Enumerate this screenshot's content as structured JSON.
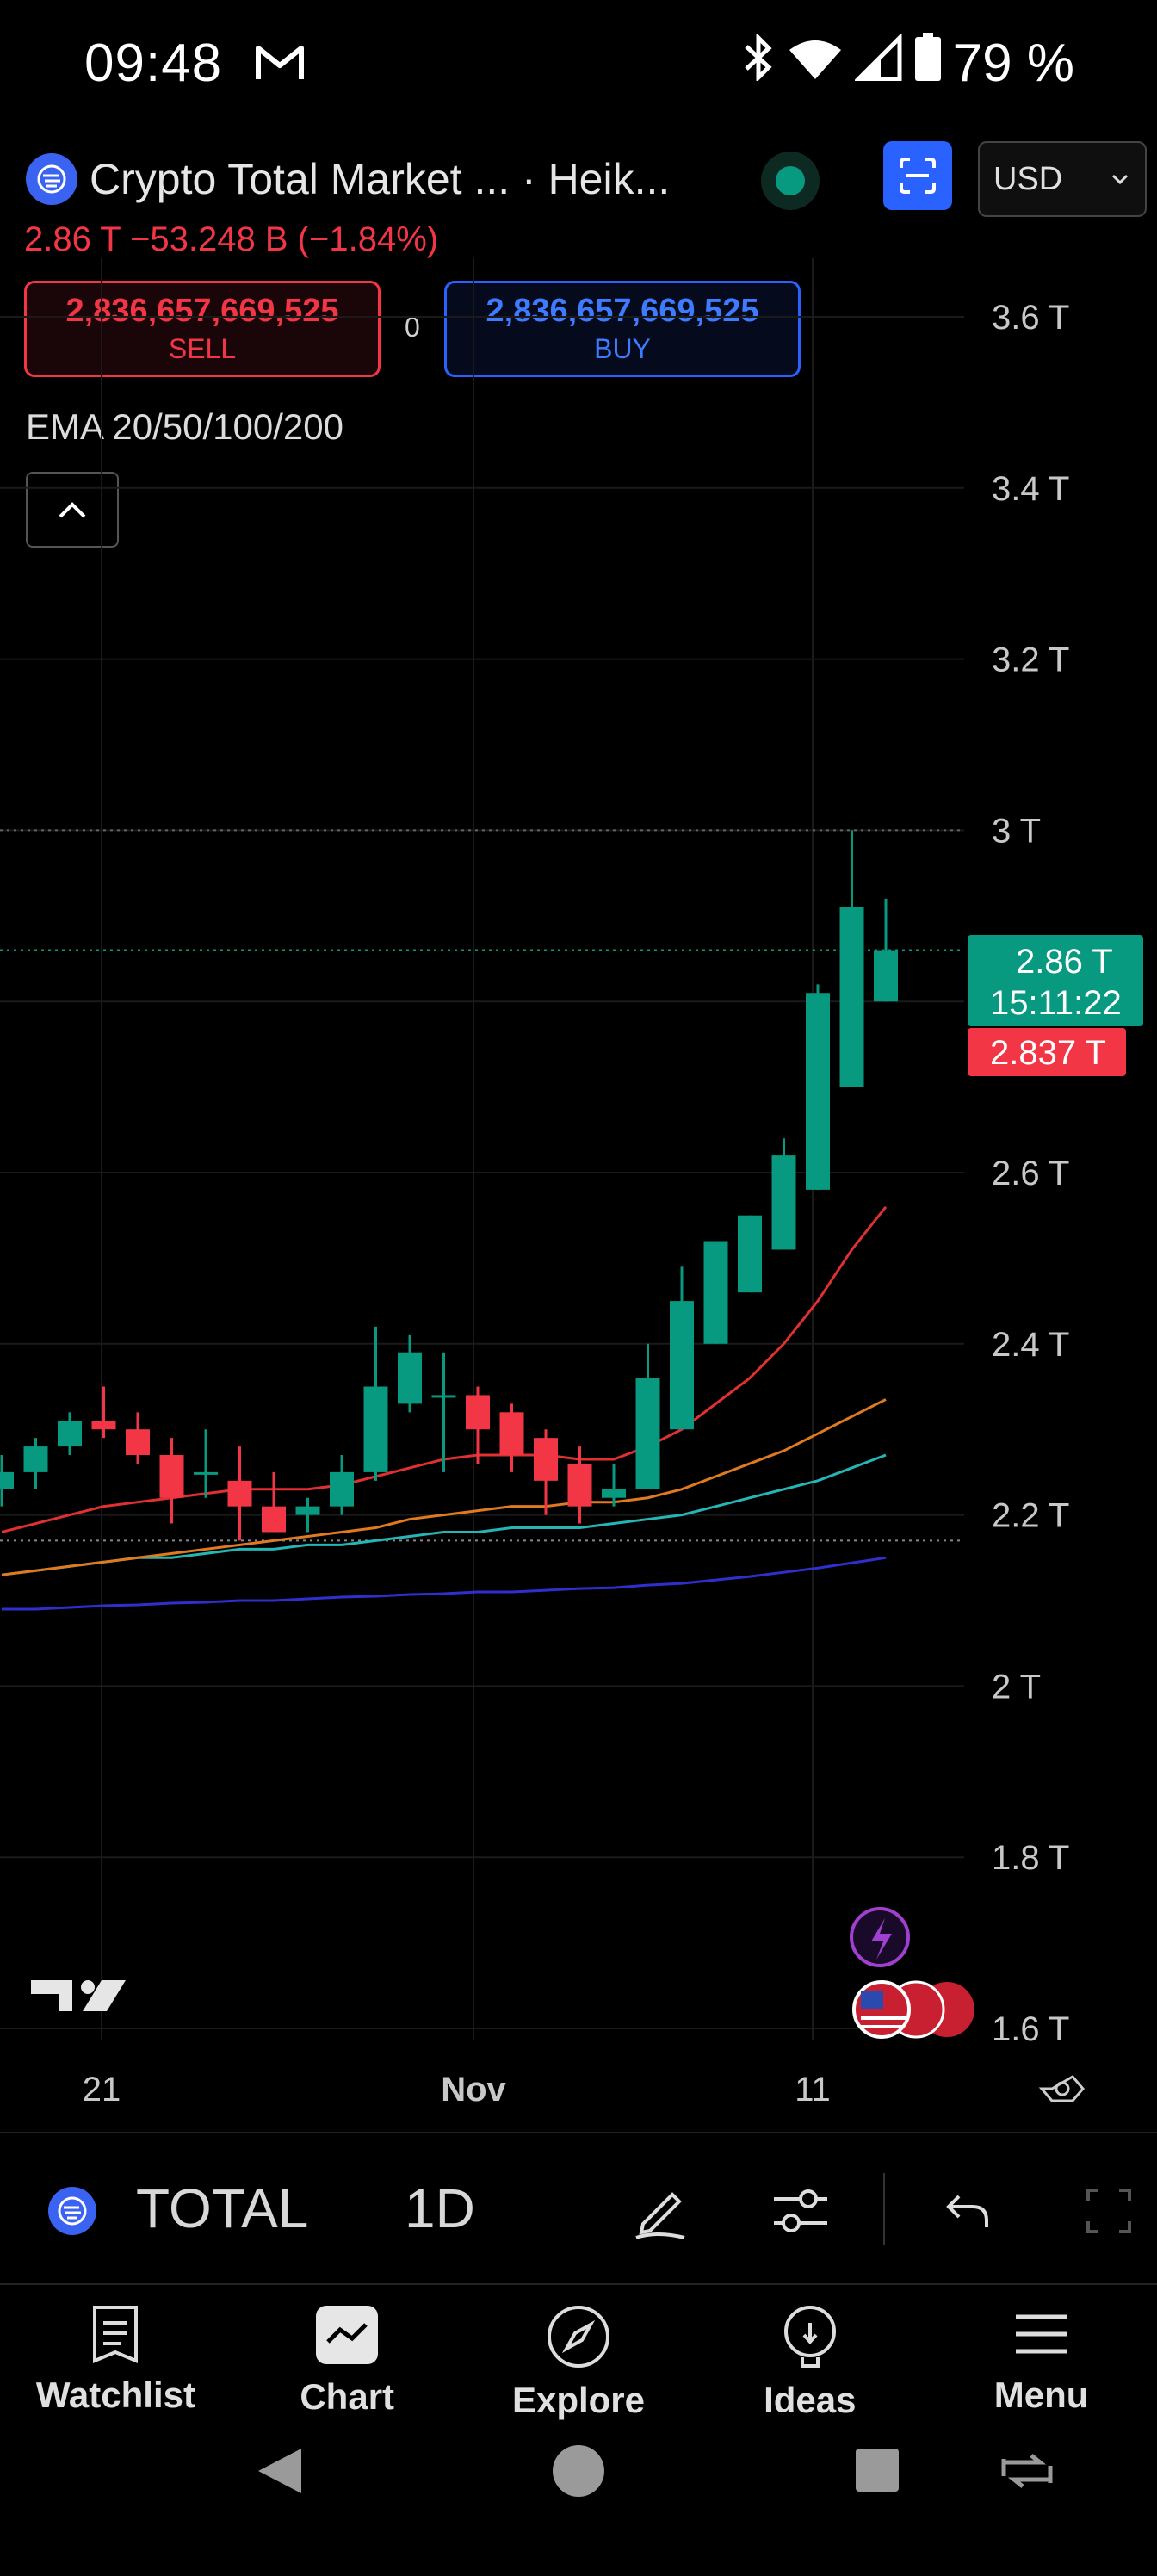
{
  "status_bar": {
    "time": "09:48",
    "battery": "79 %"
  },
  "header": {
    "title": "Crypto Total Market ... · Heik...",
    "price_line": "2.86 T  −53.248 B (−1.84%)",
    "currency": "USD",
    "sell": {
      "price": "2,836,657,669,525",
      "label": "SELL"
    },
    "buy": {
      "price": "2,836,657,669,525",
      "label": "BUY"
    },
    "spread": "0",
    "indicator": "EMA 20/50/100/200"
  },
  "chart_data": {
    "type": "candlestick",
    "y_ticks": [
      "3.6 T",
      "3.4 T",
      "3.2 T",
      "3 T",
      "2.6 T",
      "2.4 T",
      "2.2 T",
      "2 T",
      "1.8 T",
      "1.6 T"
    ],
    "x_ticks": [
      "21",
      "Nov",
      "11"
    ],
    "last_price_label": "2.86 T",
    "countdown": "15:11:22",
    "bid_label": "2.837 T",
    "colors": {
      "up": "#089981",
      "down": "#f23645",
      "ema20": "#e03030",
      "ema50": "#e07a20",
      "ema100": "#26b5b5",
      "ema200": "#2f2fd0"
    },
    "candles": [
      {
        "o": 2.23,
        "h": 2.27,
        "l": 2.21,
        "c": 2.25
      },
      {
        "o": 2.25,
        "h": 2.29,
        "l": 2.23,
        "c": 2.28
      },
      {
        "o": 2.28,
        "h": 2.32,
        "l": 2.27,
        "c": 2.31
      },
      {
        "o": 2.31,
        "h": 2.35,
        "l": 2.29,
        "c": 2.3
      },
      {
        "o": 2.3,
        "h": 2.32,
        "l": 2.26,
        "c": 2.27
      },
      {
        "o": 2.27,
        "h": 2.29,
        "l": 2.19,
        "c": 2.22
      },
      {
        "o": 2.25,
        "h": 2.3,
        "l": 2.22,
        "c": 2.25
      },
      {
        "o": 2.24,
        "h": 2.28,
        "l": 2.17,
        "c": 2.21
      },
      {
        "o": 2.21,
        "h": 2.25,
        "l": 2.18,
        "c": 2.18
      },
      {
        "o": 2.2,
        "h": 2.22,
        "l": 2.18,
        "c": 2.21
      },
      {
        "o": 2.21,
        "h": 2.27,
        "l": 2.2,
        "c": 2.25
      },
      {
        "o": 2.25,
        "h": 2.42,
        "l": 2.24,
        "c": 2.35
      },
      {
        "o": 2.33,
        "h": 2.41,
        "l": 2.32,
        "c": 2.39
      },
      {
        "o": 2.34,
        "h": 2.39,
        "l": 2.25,
        "c": 2.34
      },
      {
        "o": 2.34,
        "h": 2.35,
        "l": 2.26,
        "c": 2.3
      },
      {
        "o": 2.32,
        "h": 2.33,
        "l": 2.25,
        "c": 2.27
      },
      {
        "o": 2.29,
        "h": 2.3,
        "l": 2.2,
        "c": 2.24
      },
      {
        "o": 2.26,
        "h": 2.28,
        "l": 2.19,
        "c": 2.21
      },
      {
        "o": 2.22,
        "h": 2.26,
        "l": 2.21,
        "c": 2.23
      },
      {
        "o": 2.23,
        "h": 2.4,
        "l": 2.23,
        "c": 2.36
      },
      {
        "o": 2.3,
        "h": 2.49,
        "l": 2.3,
        "c": 2.45
      },
      {
        "o": 2.4,
        "h": 2.52,
        "l": 2.4,
        "c": 2.52
      },
      {
        "o": 2.46,
        "h": 2.55,
        "l": 2.46,
        "c": 2.55
      },
      {
        "o": 2.51,
        "h": 2.64,
        "l": 2.51,
        "c": 2.62
      },
      {
        "o": 2.58,
        "h": 2.82,
        "l": 2.58,
        "c": 2.81
      },
      {
        "o": 2.7,
        "h": 3.0,
        "l": 2.7,
        "c": 2.91
      },
      {
        "o": 2.8,
        "h": 2.92,
        "l": 2.8,
        "c": 2.86
      }
    ],
    "ema": {
      "ema20": [
        2.18,
        2.19,
        2.2,
        2.21,
        2.215,
        2.22,
        2.225,
        2.23,
        2.23,
        2.23,
        2.235,
        2.245,
        2.255,
        2.265,
        2.27,
        2.27,
        2.27,
        2.265,
        2.265,
        2.28,
        2.3,
        2.33,
        2.36,
        2.4,
        2.45,
        2.51,
        2.56
      ],
      "ema50": [
        2.13,
        2.135,
        2.14,
        2.145,
        2.15,
        2.155,
        2.16,
        2.165,
        2.17,
        2.175,
        2.18,
        2.185,
        2.195,
        2.2,
        2.205,
        2.21,
        2.21,
        2.215,
        2.215,
        2.22,
        2.23,
        2.245,
        2.26,
        2.275,
        2.295,
        2.315,
        2.335
      ],
      "ema100": [
        2.13,
        2.135,
        2.14,
        2.145,
        2.15,
        2.15,
        2.155,
        2.16,
        2.16,
        2.165,
        2.165,
        2.17,
        2.175,
        2.18,
        2.18,
        2.185,
        2.185,
        2.185,
        2.19,
        2.195,
        2.2,
        2.21,
        2.22,
        2.23,
        2.24,
        2.255,
        2.27
      ],
      "ema200": [
        2.09,
        2.09,
        2.092,
        2.094,
        2.095,
        2.097,
        2.098,
        2.1,
        2.1,
        2.102,
        2.104,
        2.105,
        2.107,
        2.108,
        2.11,
        2.11,
        2.112,
        2.114,
        2.115,
        2.118,
        2.12,
        2.124,
        2.128,
        2.133,
        2.138,
        2.144,
        2.15
      ]
    }
  },
  "toolbar": {
    "symbol": "TOTAL",
    "interval": "1D"
  },
  "nav": [
    {
      "label": "Watchlist",
      "icon": "watchlist-icon"
    },
    {
      "label": "Chart",
      "icon": "chart-icon"
    },
    {
      "label": "Explore",
      "icon": "compass-icon"
    },
    {
      "label": "Ideas",
      "icon": "lightbulb-icon"
    },
    {
      "label": "Menu",
      "icon": "hamburger-icon"
    }
  ]
}
